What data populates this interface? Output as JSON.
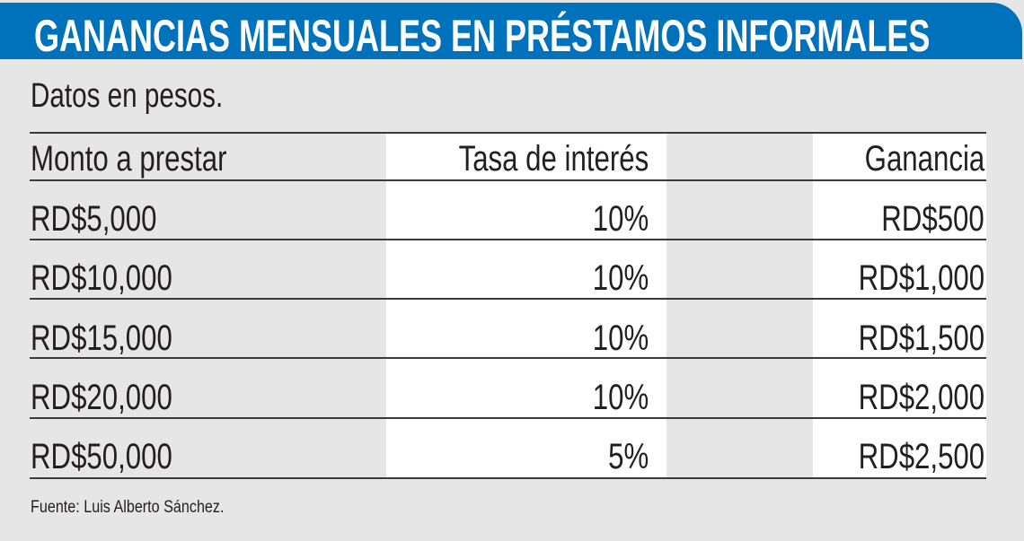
{
  "title": "GANANCIAS MENSUALES EN PRÉSTAMOS INFORMALES",
  "subtitle": "Datos en pesos.",
  "source": "Fuente: Luis Alberto Sánchez.",
  "colors": {
    "header": "#0072bc",
    "background": "#e6e6e6",
    "band": "#ffffff"
  },
  "chart_data": {
    "type": "table",
    "title": "GANANCIAS MENSUALES EN PRÉSTAMOS INFORMALES",
    "columns": [
      "Monto a prestar",
      "Tasa de interés",
      "Ganancia"
    ],
    "rows": [
      [
        "RD$5,000",
        "10%",
        "RD$500"
      ],
      [
        "RD$10,000",
        "10%",
        "RD$1,000"
      ],
      [
        "RD$15,000",
        "10%",
        "RD$1,500"
      ],
      [
        "RD$20,000",
        "10%",
        "RD$2,000"
      ],
      [
        "RD$50,000",
        "5%",
        "RD$2,500"
      ]
    ]
  }
}
